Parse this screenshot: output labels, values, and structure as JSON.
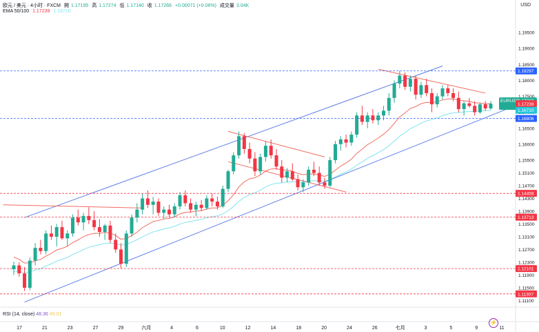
{
  "header": {
    "symbol": "欧元 / 美元 · 4小时 · FXCM",
    "open_label": "開",
    "open": "1.17195",
    "high_label": "高",
    "high": "1.17274",
    "low_label": "低",
    "low": "1.17140",
    "close_label": "收",
    "close": "1.17266",
    "change": "+0.00071 (+0.06%)",
    "volume_label": "成交量",
    "volume": "3.04K",
    "ema_label": "EMA 50/100",
    "ema_fast": "1.17239",
    "ema_slow": "1.16710",
    "currency": "USD"
  },
  "rsi": {
    "label": "RSI (14, close)",
    "value1": "48.36",
    "value2": "45.01"
  },
  "price_tag": {
    "symbol": "EURUSD",
    "price": "1.17266",
    "countdown": "01:22:02"
  },
  "chart_data": {
    "type": "candlestick",
    "title": "",
    "ylim": [
      1.11,
      1.2
    ],
    "y_ticks": [
      "1.19500",
      "1.19000",
      "1.18500",
      "1.18000",
      "1.17500",
      "1.17000",
      "1.16500",
      "1.16000",
      "1.15500",
      "1.15100",
      "1.14700",
      "1.14300",
      "1.13900",
      "1.13500",
      "1.13100",
      "1.12700",
      "1.12300",
      "1.11900",
      "1.11500",
      "1.11100"
    ],
    "x_ticks": [
      "17",
      "21",
      "23",
      "27",
      "29",
      "六月",
      "4",
      "6",
      "10",
      "12",
      "14",
      "18",
      "20",
      "24",
      "26",
      "七月",
      "3",
      "5",
      "9",
      "11"
    ],
    "candles": [
      [
        1.1208,
        1.1232,
        1.119,
        1.122
      ],
      [
        1.122,
        1.123,
        1.1185,
        1.1195
      ],
      [
        1.1195,
        1.1215,
        1.114,
        1.115
      ],
      [
        1.115,
        1.1245,
        1.1142,
        1.1235
      ],
      [
        1.1235,
        1.129,
        1.122,
        1.1275
      ],
      [
        1.1275,
        1.13,
        1.1255,
        1.1265
      ],
      [
        1.1265,
        1.133,
        1.1255,
        1.132
      ],
      [
        1.132,
        1.1345,
        1.13,
        1.131
      ],
      [
        1.131,
        1.135,
        1.128,
        1.134
      ],
      [
        1.134,
        1.136,
        1.13,
        1.1305
      ],
      [
        1.1305,
        1.133,
        1.128,
        1.132
      ],
      [
        1.132,
        1.138,
        1.131,
        1.137
      ],
      [
        1.137,
        1.1395,
        1.1345,
        1.1355
      ],
      [
        1.1355,
        1.1385,
        1.133,
        1.1375
      ],
      [
        1.1375,
        1.1402,
        1.135,
        1.1362
      ],
      [
        1.1362,
        1.139,
        1.133,
        1.134
      ],
      [
        1.134,
        1.1365,
        1.131,
        1.1325
      ],
      [
        1.1325,
        1.135,
        1.13,
        1.1345
      ],
      [
        1.1345,
        1.136,
        1.129,
        1.13
      ],
      [
        1.13,
        1.132,
        1.126,
        1.127
      ],
      [
        1.127,
        1.129,
        1.121,
        1.1225
      ],
      [
        1.1225,
        1.133,
        1.1215,
        1.132
      ],
      [
        1.132,
        1.138,
        1.131,
        1.137
      ],
      [
        1.137,
        1.1415,
        1.1355,
        1.1395
      ],
      [
        1.1395,
        1.1445,
        1.138,
        1.143
      ],
      [
        1.143,
        1.1455,
        1.14,
        1.141
      ],
      [
        1.141,
        1.1435,
        1.138,
        1.142
      ],
      [
        1.142,
        1.143,
        1.1375,
        1.1385
      ],
      [
        1.1385,
        1.1405,
        1.1365,
        1.1395
      ],
      [
        1.1395,
        1.141,
        1.137,
        1.138
      ],
      [
        1.138,
        1.1415,
        1.137,
        1.1405
      ],
      [
        1.1405,
        1.145,
        1.1395,
        1.144
      ],
      [
        1.144,
        1.1455,
        1.1405,
        1.1415
      ],
      [
        1.1415,
        1.143,
        1.1385,
        1.1395
      ],
      [
        1.1395,
        1.142,
        1.1375,
        1.141
      ],
      [
        1.141,
        1.1425,
        1.139,
        1.14
      ],
      [
        1.14,
        1.144,
        1.1395,
        1.143
      ],
      [
        1.143,
        1.1445,
        1.1405,
        1.142
      ],
      [
        1.142,
        1.1435,
        1.1395,
        1.1405
      ],
      [
        1.1405,
        1.147,
        1.14,
        1.146
      ],
      [
        1.146,
        1.152,
        1.145,
        1.1515
      ],
      [
        1.1515,
        1.1575,
        1.1505,
        1.1565
      ],
      [
        1.1565,
        1.164,
        1.1555,
        1.1625
      ],
      [
        1.1625,
        1.1635,
        1.157,
        1.1585
      ],
      [
        1.1585,
        1.1605,
        1.154,
        1.1555
      ],
      [
        1.1555,
        1.1575,
        1.15,
        1.1515
      ],
      [
        1.1515,
        1.157,
        1.1505,
        1.156
      ],
      [
        1.156,
        1.161,
        1.1545,
        1.1595
      ],
      [
        1.1595,
        1.1615,
        1.1555,
        1.1565
      ],
      [
        1.1565,
        1.1585,
        1.152,
        1.153
      ],
      [
        1.153,
        1.155,
        1.148,
        1.1495
      ],
      [
        1.1495,
        1.1525,
        1.148,
        1.1515
      ],
      [
        1.1515,
        1.154,
        1.1485,
        1.149
      ],
      [
        1.149,
        1.1505,
        1.1455,
        1.1465
      ],
      [
        1.1465,
        1.149,
        1.145,
        1.148
      ],
      [
        1.148,
        1.153,
        1.147,
        1.152
      ],
      [
        1.152,
        1.1545,
        1.15,
        1.151
      ],
      [
        1.151,
        1.153,
        1.147,
        1.148
      ],
      [
        1.148,
        1.1495,
        1.146,
        1.147
      ],
      [
        1.147,
        1.156,
        1.1465,
        1.155
      ],
      [
        1.155,
        1.161,
        1.154,
        1.16
      ],
      [
        1.16,
        1.1625,
        1.158,
        1.1615
      ],
      [
        1.1615,
        1.163,
        1.159,
        1.1605
      ],
      [
        1.1605,
        1.164,
        1.1595,
        1.163
      ],
      [
        1.163,
        1.17,
        1.162,
        1.169
      ],
      [
        1.169,
        1.172,
        1.166,
        1.167
      ],
      [
        1.167,
        1.17,
        1.165,
        1.169
      ],
      [
        1.169,
        1.171,
        1.1665,
        1.1675
      ],
      [
        1.1675,
        1.17,
        1.166,
        1.169
      ],
      [
        1.169,
        1.172,
        1.1675,
        1.1705
      ],
      [
        1.1705,
        1.176,
        1.169,
        1.1745
      ],
      [
        1.1745,
        1.18,
        1.173,
        1.179
      ],
      [
        1.179,
        1.183,
        1.1775,
        1.1815
      ],
      [
        1.1815,
        1.1825,
        1.177,
        1.178
      ],
      [
        1.178,
        1.1815,
        1.1765,
        1.1805
      ],
      [
        1.1805,
        1.1815,
        1.174,
        1.1755
      ],
      [
        1.1755,
        1.1795,
        1.1745,
        1.1785
      ],
      [
        1.1785,
        1.1805,
        1.175,
        1.176
      ],
      [
        1.176,
        1.1775,
        1.17,
        1.1725
      ],
      [
        1.1725,
        1.176,
        1.1715,
        1.175
      ],
      [
        1.175,
        1.1785,
        1.174,
        1.1775
      ],
      [
        1.1775,
        1.1785,
        1.175,
        1.176
      ],
      [
        1.176,
        1.1775,
        1.1735,
        1.1745
      ],
      [
        1.1745,
        1.1765,
        1.17,
        1.171
      ],
      [
        1.171,
        1.1735,
        1.169,
        1.1728
      ],
      [
        1.1728,
        1.1745,
        1.1715,
        1.172
      ],
      [
        1.172,
        1.1735,
        1.169,
        1.17
      ],
      [
        1.17,
        1.173,
        1.1695,
        1.1725
      ],
      [
        1.1725,
        1.1735,
        1.1705,
        1.1712
      ],
      [
        1.1712,
        1.1735,
        1.1708,
        1.1727
      ]
    ],
    "ema_fast_label": "EMA 50",
    "ema_slow_label": "EMA 100",
    "levels": [
      {
        "label": "1.18297",
        "value": 1.18297,
        "color": "#2962ff"
      },
      {
        "label": "1.16806",
        "value": 1.16806,
        "color": "#2962ff"
      },
      {
        "label": "1.14458",
        "value": 1.14458,
        "color": "#f23645"
      },
      {
        "label": "1.13713",
        "value": 1.13713,
        "color": "#f23645"
      },
      {
        "label": "1.12101",
        "value": 1.12101,
        "color": "#f23645"
      },
      {
        "label": "1.11307",
        "value": 1.11307,
        "color": "#f23645"
      }
    ],
    "tag_values": [
      {
        "label": "1.17239",
        "color": "#f23645"
      },
      {
        "label": "1.16710",
        "color": "#26c6da"
      }
    ],
    "colors": {
      "up": "#22ab94",
      "down": "#f23645",
      "ema_fast": "#f26b5f",
      "ema_slow": "#7fe3ef",
      "channel": "#5b7be6",
      "trend": "#f26b5f",
      "tag_blue": "#2962ff"
    },
    "grid": false
  }
}
